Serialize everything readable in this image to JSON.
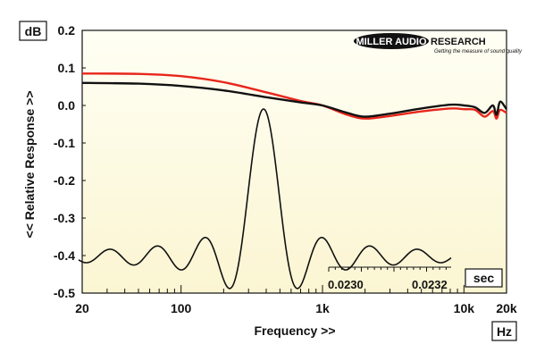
{
  "chart_data": {
    "type": "line",
    "title": "",
    "xlabel": "Frequency >>",
    "ylabel": "<< Relative Response >>",
    "x_unit": "Hz",
    "y_unit": "dB",
    "x_scale": "log",
    "xlim": [
      20,
      20000
    ],
    "ylim": [
      -0.5,
      0.2
    ],
    "x_ticks": [
      {
        "value": 20,
        "label": "20"
      },
      {
        "value": 100,
        "label": "100"
      },
      {
        "value": 1000,
        "label": "1k"
      },
      {
        "value": 10000,
        "label": "10k"
      },
      {
        "value": 20000,
        "label": "20k"
      }
    ],
    "y_ticks": [
      {
        "value": 0.2,
        "label": "0.2"
      },
      {
        "value": 0.1,
        "label": "0.1"
      },
      {
        "value": 0.0,
        "label": "0.0"
      },
      {
        "value": -0.1,
        "label": "-0.1"
      },
      {
        "value": -0.2,
        "label": "-0.2"
      },
      {
        "value": -0.3,
        "label": "-0.3"
      },
      {
        "value": -0.4,
        "label": "-0.4"
      },
      {
        "value": -0.5,
        "label": "-0.5"
      }
    ],
    "grid": false,
    "series": [
      {
        "color": "#e8261b",
        "x": [
          20,
          50,
          100,
          200,
          400,
          700,
          1000,
          1500,
          2000,
          3000,
          5000,
          8000,
          10000,
          12000,
          14000,
          16000,
          17000,
          18000,
          20000
        ],
        "y": [
          0.085,
          0.084,
          0.078,
          0.062,
          0.035,
          0.012,
          0.0,
          -0.025,
          -0.035,
          -0.028,
          -0.016,
          -0.008,
          -0.01,
          -0.012,
          -0.03,
          -0.015,
          -0.035,
          -0.012,
          -0.02
        ]
      },
      {
        "color": "#111111",
        "x": [
          20,
          50,
          100,
          200,
          400,
          700,
          1000,
          1500,
          2000,
          3000,
          5000,
          8000,
          10000,
          12000,
          14000,
          16000,
          17000,
          18000,
          20000
        ],
        "y": [
          0.06,
          0.058,
          0.052,
          0.04,
          0.022,
          0.008,
          0.0,
          -0.02,
          -0.03,
          -0.022,
          -0.008,
          0.002,
          0.0,
          -0.005,
          -0.02,
          0.0,
          -0.025,
          0.01,
          -0.01
        ]
      }
    ],
    "inset": {
      "type": "line",
      "x_unit": "sec",
      "x_tick_labels": [
        "0.0230",
        "0.0232"
      ],
      "description_free": true
    },
    "branding": {
      "name_left": "MILLER AUDIO",
      "name_right": "RESEARCH",
      "tagline": "Getting the measure of sound quality"
    }
  }
}
